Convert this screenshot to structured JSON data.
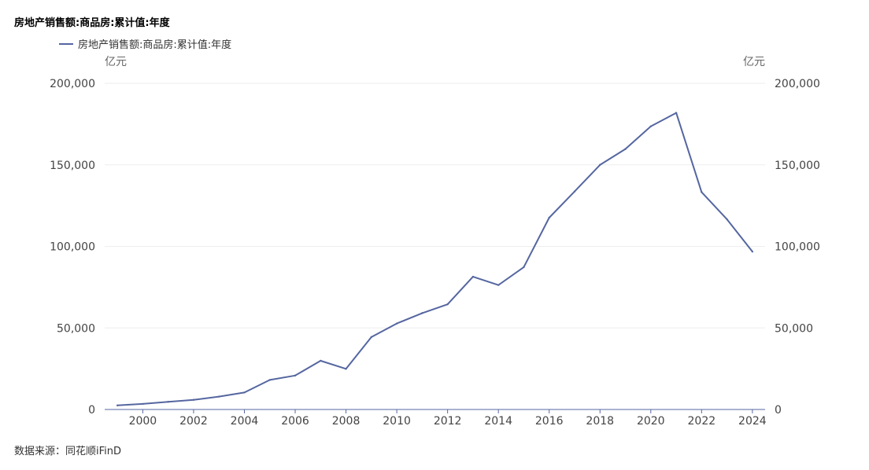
{
  "header": {
    "title": "房地产销售额:商品房:累计值:年度",
    "source": "数据来源：同花顺iFinD"
  },
  "legend": {
    "label": "房地产销售额:商品房:累计值:年度"
  },
  "colors": {
    "series": "#5566a0",
    "grid": "#eeeeee",
    "axis": "#5566a0"
  },
  "chart_data": {
    "type": "line",
    "title": "房地产销售额:商品房:累计值:年度",
    "y_unit_left": "亿元",
    "y_unit_right": "亿元",
    "ylim": [
      0,
      200000
    ],
    "y_ticks": [
      0,
      50000,
      100000,
      150000,
      200000
    ],
    "y_tick_labels": [
      "0",
      "50,000",
      "100,000",
      "150,000",
      "200,000"
    ],
    "x_tick_labels": [
      "2000",
      "2002",
      "2004",
      "2006",
      "2008",
      "2010",
      "2012",
      "2014",
      "2016",
      "2018",
      "2020",
      "2022",
      "2024"
    ],
    "grid": true,
    "legend_position": "top-left",
    "series": [
      {
        "name": "房地产销售额:商品房:累计值:年度",
        "x": [
          1999,
          2000,
          2001,
          2002,
          2003,
          2004,
          2005,
          2006,
          2007,
          2008,
          2009,
          2010,
          2011,
          2012,
          2013,
          2014,
          2015,
          2016,
          2017,
          2018,
          2019,
          2020,
          2021,
          2022,
          2023,
          2024
        ],
        "values": [
          2500,
          3400,
          4700,
          5900,
          7900,
          10400,
          18100,
          20800,
          29900,
          24900,
          44400,
          52700,
          59100,
          64500,
          81400,
          76300,
          87300,
          117600,
          133700,
          150000,
          159700,
          173600,
          181900,
          133300,
          116600,
          96800
        ]
      }
    ]
  }
}
